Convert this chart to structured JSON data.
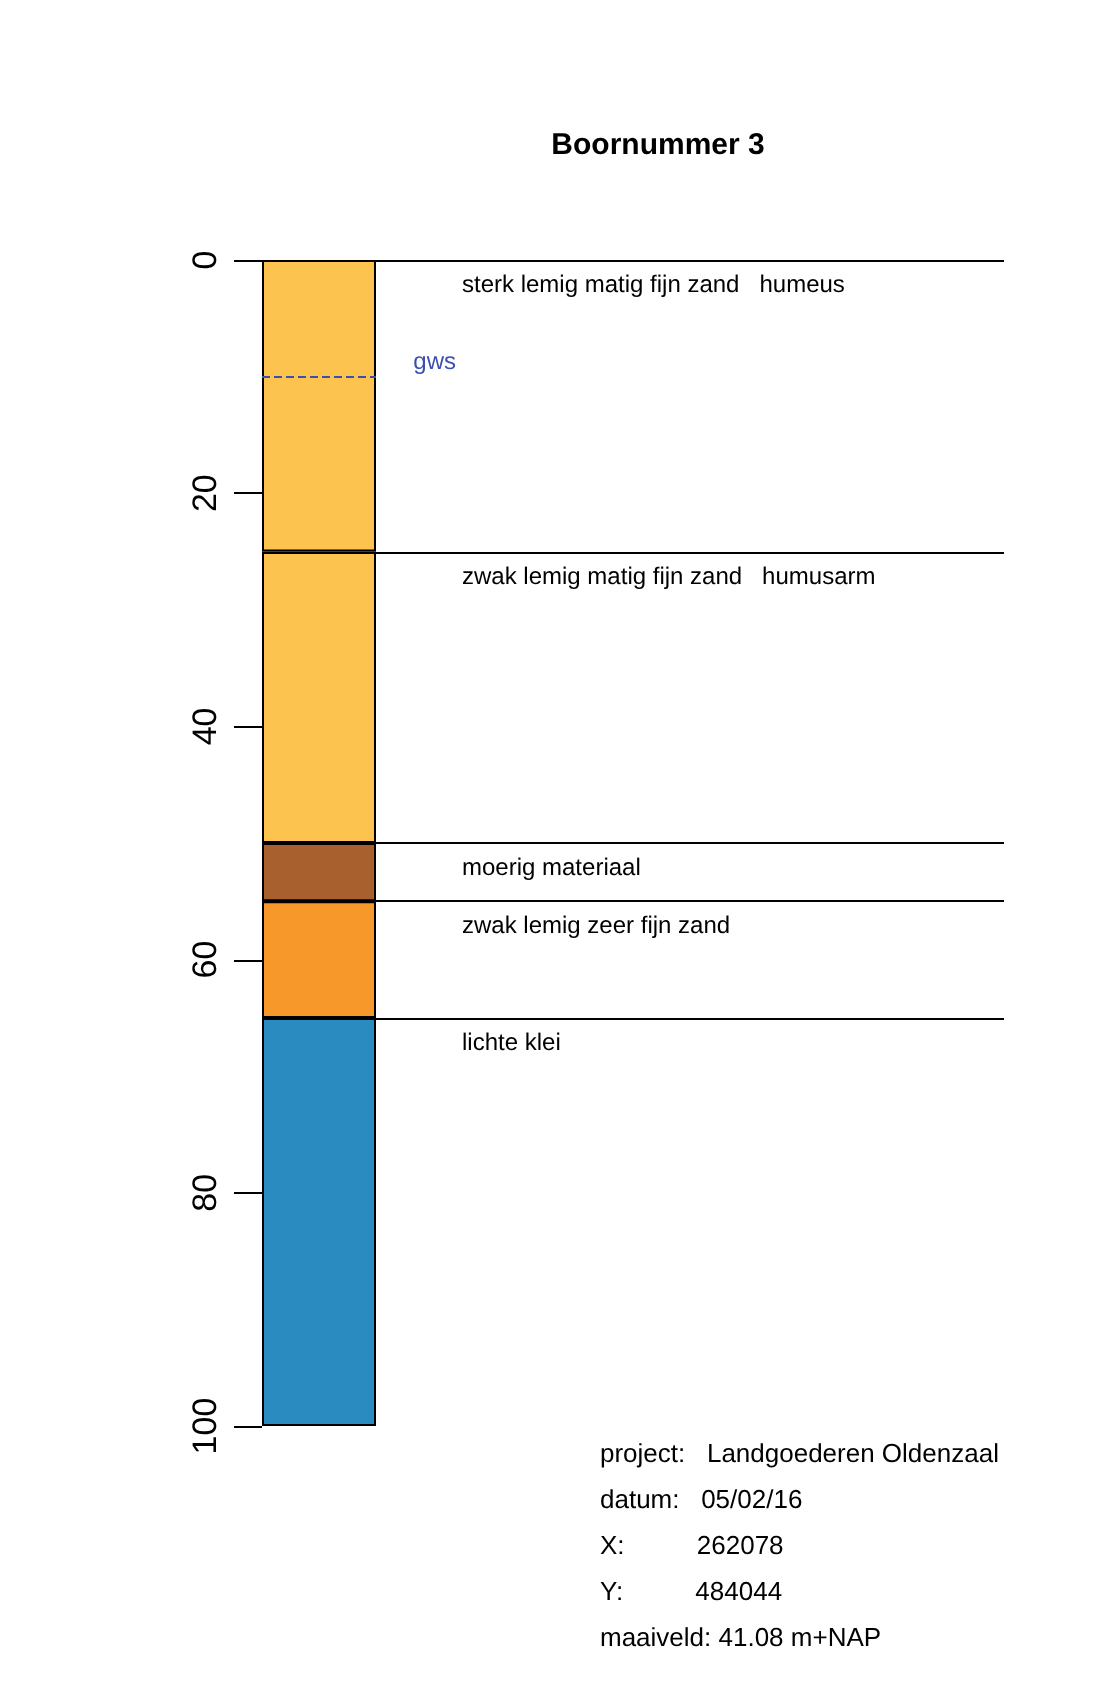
{
  "chart_data": {
    "type": "bar",
    "title": "Boornummer 3",
    "stacked": true,
    "categories": [
      null
    ],
    "series": [
      {
        "color": "#fcc44e",
        "values": [
          25
        ]
      },
      {
        "color": "#fcc44e",
        "values": [
          25
        ]
      },
      {
        "color": "#a8612e",
        "values": [
          5
        ]
      },
      {
        "color": "#f7982a",
        "values": [
          10
        ]
      },
      {
        "color": "#2a8bc1",
        "values": [
          35
        ]
      }
    ],
    "ylim": [
      100,
      0
    ],
    "yticks": [
      0,
      20,
      40,
      60,
      80,
      100
    ],
    "ref_lines": [
      {
        "axis": "y",
        "value": 0,
        "label": "sterk lemig matig fijn zand   humeus"
      },
      {
        "axis": "y",
        "value": 25,
        "label": "zwak lemig matig fijn zand   humusarm"
      },
      {
        "axis": "y",
        "value": 50,
        "label": "moerig materiaal"
      },
      {
        "axis": "y",
        "value": 55,
        "label": "zwak lemig zeer fijn zand"
      },
      {
        "axis": "y",
        "value": 65,
        "label": "lichte klei"
      },
      {
        "axis": "y",
        "value": 10,
        "label": "gws",
        "color": "#3a4fb0",
        "line_style": "dashed"
      }
    ],
    "annotations": [
      "project:   Landgoederen Oldenzaal",
      "datum:   05/02/16",
      "X:          262078",
      "Y:          484044",
      "maaiveld: 41.08 m+NAP"
    ]
  }
}
